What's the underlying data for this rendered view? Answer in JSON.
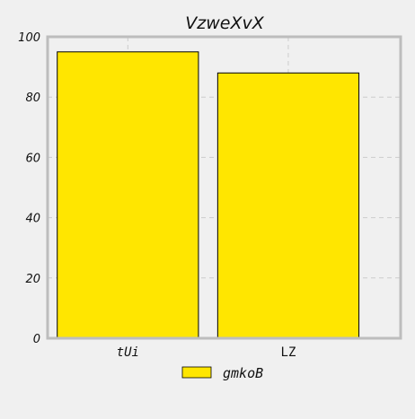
{
  "chart_data": {
    "type": "bar",
    "title": "VzweXvX",
    "xlabel": "",
    "ylabel": "",
    "categories": [
      "tUi",
      "LZ"
    ],
    "series": [
      {
        "name": "gmkoB",
        "values": [
          95,
          88
        ],
        "color": "#ffe600"
      }
    ],
    "ylim": [
      0,
      100
    ],
    "yticks": [
      0,
      20,
      40,
      60,
      80,
      100
    ],
    "grid": true,
    "legend_position": "bottom-center",
    "colors": {
      "background": "#f0f0f0",
      "axes_border": "#bdbdbd",
      "grid": "#cccccc",
      "bar_edge": "#000000"
    }
  }
}
